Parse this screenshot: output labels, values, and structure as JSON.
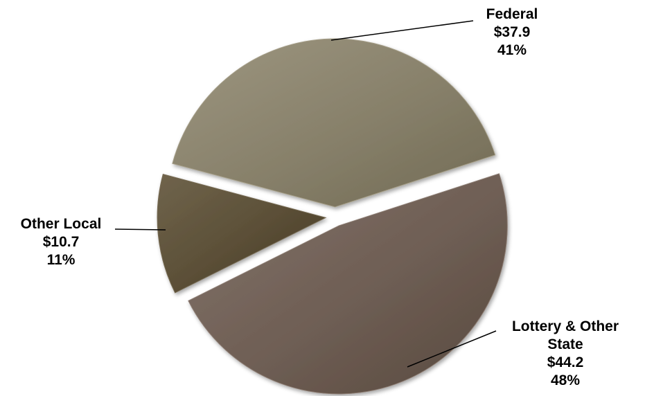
{
  "chart_data": {
    "type": "pie",
    "title": "",
    "exploded": true,
    "slices": [
      {
        "name": "Lottery & Other State",
        "label_lines": [
          "Lottery & Other",
          "State"
        ],
        "amount": "$44.2",
        "value": 44.2,
        "percent": "48%",
        "color": "#6e5e54"
      },
      {
        "name": "Other Local",
        "label_lines": [
          "Other Local"
        ],
        "amount": "$10.7",
        "value": 10.7,
        "percent": "11%",
        "color": "#5a4e36"
      },
      {
        "name": "Federal",
        "label_lines": [
          "Federal"
        ],
        "amount": "$37.9",
        "value": 37.9,
        "percent": "41%",
        "color": "#87806a"
      }
    ]
  }
}
